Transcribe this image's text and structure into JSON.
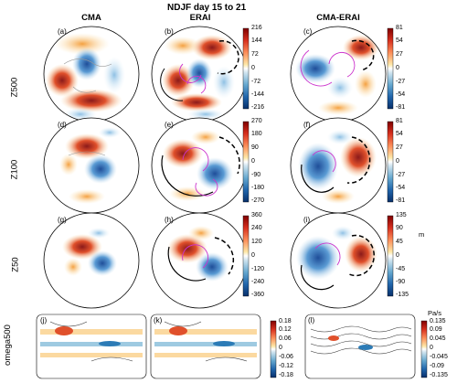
{
  "figure": {
    "title": "NDJF  day 15 to 21",
    "columns": [
      "CMA",
      "ERAI",
      "CMA-ERAI"
    ],
    "rows": [
      "Z500",
      "Z100",
      "Z50",
      "omega500"
    ],
    "panel_labels": [
      "(a)",
      "(b)",
      "(c)",
      "(d)",
      "(e)",
      "(f)",
      "(g)",
      "(h)",
      "(i)",
      "(j)",
      "(k)",
      "(l)"
    ],
    "colorbars": {
      "z500_full": [
        "216",
        "144",
        "72",
        "0",
        "-72",
        "-144",
        "-216"
      ],
      "z500_diff": [
        "81",
        "54",
        "27",
        "0",
        "-27",
        "-54",
        "-81"
      ],
      "z100_full": [
        "270",
        "180",
        "90",
        "0",
        "-90",
        "-180",
        "-270"
      ],
      "z100_diff": [
        "81",
        "54",
        "27",
        "0",
        "-27",
        "-54",
        "-81"
      ],
      "z50_full": [
        "360",
        "240",
        "120",
        "0",
        "-120",
        "-240",
        "-360"
      ],
      "z50_diff": [
        "135",
        "90",
        "45",
        "0",
        "-45",
        "-90",
        "-135"
      ],
      "z50_diff_unit": "m",
      "omega_full": [
        "0.18",
        "0.12",
        "0.06",
        "0",
        "-0.06",
        "-0.12",
        "-0.18"
      ],
      "omega_diff": [
        "0.135",
        "0.09",
        "0.045",
        "0",
        "-0.045",
        "-0.09",
        "-0.135"
      ],
      "omega_diff_unit": "Pa/s"
    },
    "colors": {
      "red": "#c0392b",
      "orange": "#f4a460",
      "blue": "#2c7bb6",
      "lightblue": "#9ecae1",
      "magenta": "#cc33cc"
    }
  }
}
